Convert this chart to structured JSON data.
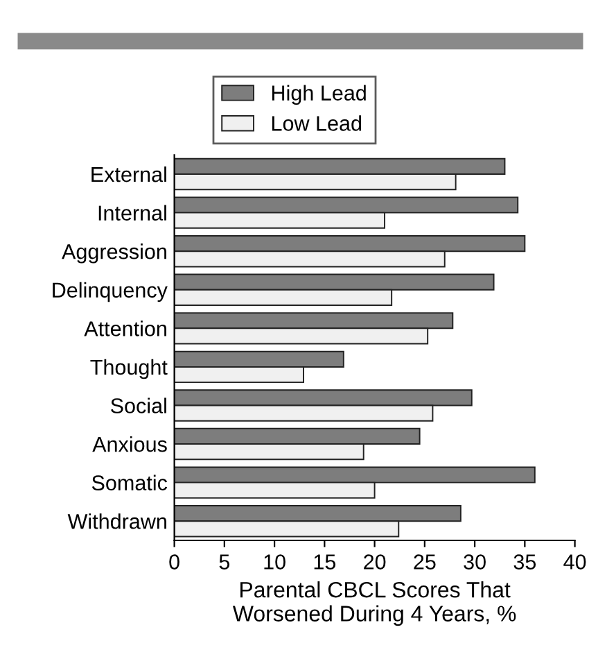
{
  "chart_data": {
    "type": "bar",
    "orientation": "horizontal",
    "categories": [
      "External",
      "Internal",
      "Aggression",
      "Delinquency",
      "Attention",
      "Thought",
      "Social",
      "Anxious",
      "Somatic",
      "Withdrawn"
    ],
    "series": [
      {
        "name": "High Lead",
        "color": "#7d7d7d",
        "values": [
          33.0,
          34.3,
          35.0,
          31.9,
          27.8,
          16.9,
          29.7,
          24.5,
          36.0,
          28.6
        ]
      },
      {
        "name": "Low Lead",
        "color": "#f0f0f0",
        "values": [
          28.1,
          21.0,
          27.0,
          21.7,
          25.3,
          12.9,
          25.8,
          18.9,
          20.0,
          22.4
        ]
      }
    ],
    "xlabel": "Parental CBCL Scores That\nWorsened During 4 Years, %",
    "xlim": [
      0,
      40
    ],
    "xticks": [
      0,
      5,
      10,
      15,
      20,
      25,
      30,
      35,
      40
    ],
    "grid": false,
    "legend": "top"
  }
}
